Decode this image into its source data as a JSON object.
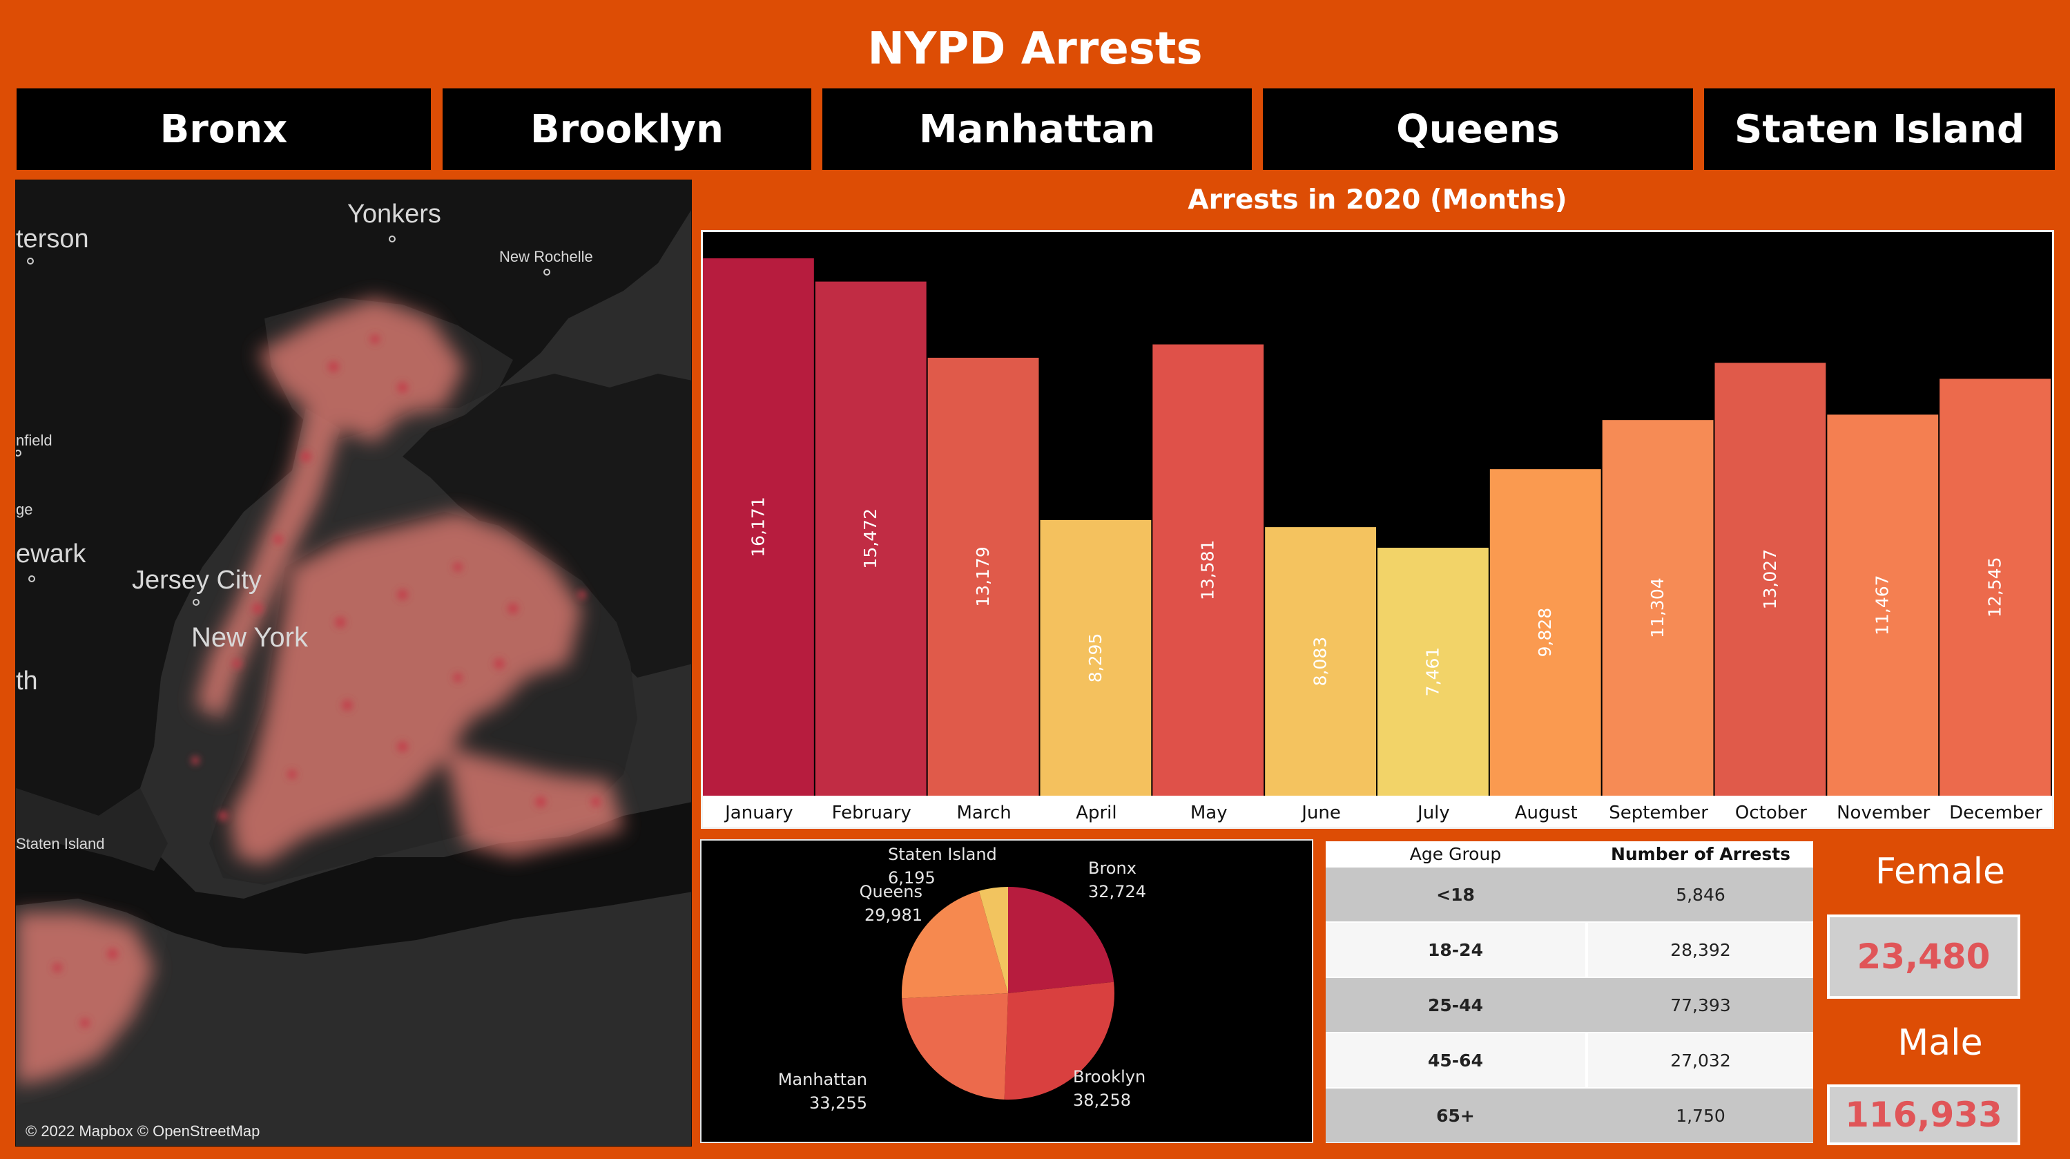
{
  "title": "NYPD Arrests",
  "borough_buttons": [
    "Bronx",
    "Brooklyn",
    "Manhattan",
    "Queens",
    "Staten Island"
  ],
  "map": {
    "labels": {
      "yonkers": "Yonkers",
      "paterson": "terson",
      "new_rochelle": "New Rochelle",
      "plainfield": "nfield",
      "bridge": "ge",
      "newark": "ewark",
      "jersey_city": "Jersey City",
      "new_york": "New York",
      "south": "th",
      "staten_island": "Staten Island"
    },
    "credit": "© 2022 Mapbox © OpenStreetMap"
  },
  "chart_data": [
    {
      "type": "bar",
      "title": "Arrests in 2020 (Months)",
      "categories": [
        "January",
        "February",
        "March",
        "April",
        "May",
        "June",
        "July",
        "August",
        "September",
        "October",
        "November",
        "December"
      ],
      "values": [
        16171,
        15472,
        13179,
        8295,
        13581,
        8083,
        7461,
        9828,
        11304,
        13027,
        11467,
        12545
      ],
      "value_labels": [
        "16,171",
        "15,472",
        "13,179",
        "8,295",
        "13,581",
        "8,083",
        "7,461",
        "9,828",
        "11,304",
        "13,027",
        "11,467",
        "12,545"
      ],
      "colors": [
        "#b71c3e",
        "#c12c44",
        "#e05a4a",
        "#f4c15e",
        "#df5149",
        "#f4c35f",
        "#f2d368",
        "#fa9a50",
        "#f68b55",
        "#e05a4a",
        "#f47f51",
        "#ec6a4c"
      ],
      "ylim": [
        0,
        16171
      ],
      "xlabel": "",
      "ylabel": ""
    },
    {
      "type": "pie",
      "categories": [
        "Bronx",
        "Brooklyn",
        "Manhattan",
        "Queens",
        "Staten Island"
      ],
      "values": [
        32724,
        38258,
        33255,
        29981,
        6195
      ],
      "value_labels": [
        "32,724",
        "38,258",
        "33,255",
        "29,981",
        "6,195"
      ],
      "colors": [
        "#b71c3e",
        "#d9403f",
        "#ec6a4c",
        "#f6894f",
        "#f2c45f"
      ]
    },
    {
      "type": "table",
      "columns": [
        "Age Group",
        "Number of Arrests"
      ],
      "rows": [
        [
          "<18",
          "5,846"
        ],
        [
          "18-24",
          "28,392"
        ],
        [
          "25-44",
          "77,393"
        ],
        [
          "45-64",
          "27,032"
        ],
        [
          "65+",
          "1,750"
        ]
      ]
    }
  ],
  "gender": {
    "female_label": "Female",
    "female_value": "23,480",
    "male_label": "Male",
    "male_value": "116,933"
  }
}
